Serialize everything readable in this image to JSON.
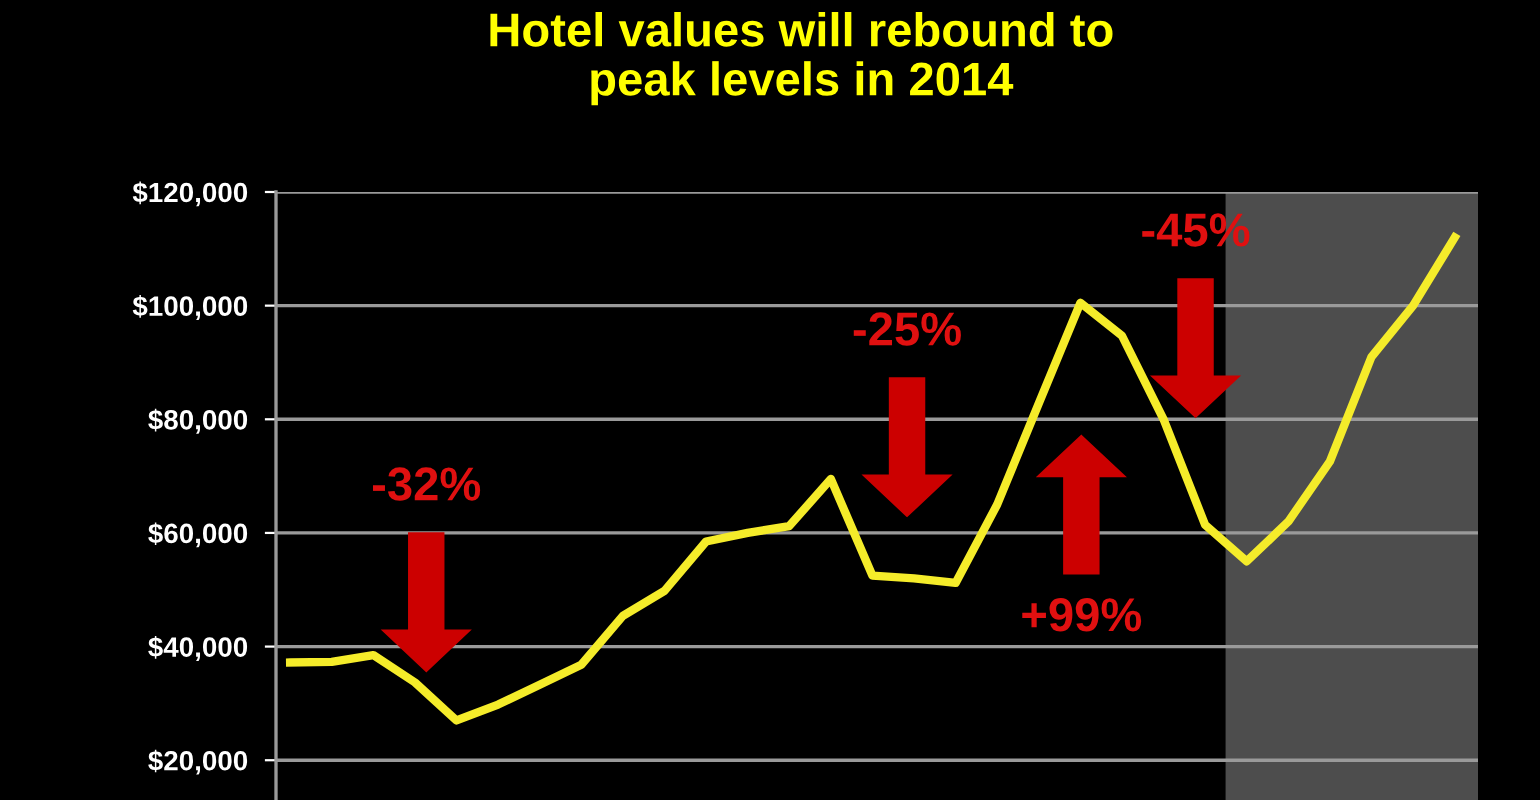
{
  "chart_data": {
    "type": "line",
    "title": "Hotel values will rebound to\npeak levels in 2014",
    "categories": [
      null,
      null,
      null,
      null,
      null,
      null,
      null,
      null,
      null,
      null,
      null,
      null,
      null,
      null,
      null,
      null,
      null,
      null,
      null,
      null,
      null,
      null,
      null,
      null,
      null,
      null,
      null,
      null,
      null
    ],
    "series": [
      {
        "color": "#f5ec2a",
        "values": [
          37200,
          37300,
          38500,
          33700,
          27000,
          29800,
          33300,
          36800,
          45400,
          49800,
          58500,
          60000,
          61200,
          69500,
          52500,
          52000,
          51200,
          65000,
          82800,
          100500,
          94700,
          80000,
          61400,
          55000,
          62000,
          72600,
          91000,
          100000,
          112000
        ]
      }
    ],
    "ylim": [
      13000,
      120000
    ],
    "yticks": [
      {
        "value": 20000,
        "label": "$20,000"
      },
      {
        "value": 40000,
        "label": "$40,000"
      },
      {
        "value": 60000,
        "label": "$60,000"
      },
      {
        "value": 80000,
        "label": "$80,000"
      },
      {
        "value": 100000,
        "label": "$100,000"
      },
      {
        "value": 120000,
        "label": "$120,000"
      }
    ],
    "tick_labels": "y",
    "grid": "y",
    "marker": "none",
    "line_style": "solid",
    "annotations": [
      "-32%",
      "-25%",
      "+99%",
      "-45%"
    ]
  }
}
